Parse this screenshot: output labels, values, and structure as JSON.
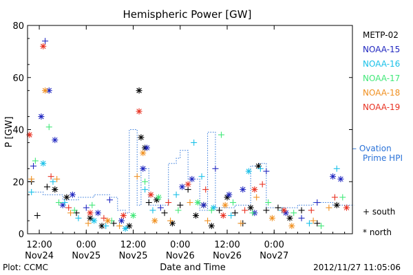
{
  "chart_data": {
    "type": "scatter",
    "title": "Hemispheric Power [GW]",
    "ylabel": "P [GW]",
    "xlabel": "Date and Time",
    "ylim": [
      0,
      80
    ],
    "yticks": [
      0,
      20,
      40,
      60,
      80
    ],
    "xlim": [
      "2012-11-24T09:00",
      "2012-11-27T20:00"
    ],
    "xticks": [
      {
        "t": "2012-11-24T12:00",
        "top": "12:00",
        "bottom": "Nov24"
      },
      {
        "t": "2012-11-25T00:00",
        "top": "0:00",
        "bottom": "Nov25"
      },
      {
        "t": "2012-11-25T12:00",
        "top": "12:00",
        "bottom": "Nov25"
      },
      {
        "t": "2012-11-26T00:00",
        "top": "0:00",
        "bottom": "Nov26"
      },
      {
        "t": "2012-11-26T12:00",
        "top": "12:00",
        "bottom": "Nov26"
      },
      {
        "t": "2012-11-27T00:00",
        "top": "0:00",
        "bottom": "Nov27"
      }
    ],
    "series": [
      {
        "name": "METP-02",
        "color": "#000000",
        "points": [
          [
            "2012-11-24T10:00",
            20,
            "s"
          ],
          [
            "2012-11-24T11:30",
            7,
            "s"
          ],
          [
            "2012-11-24T14:00",
            18,
            "s"
          ],
          [
            "2012-11-24T16:00",
            17,
            "n"
          ],
          [
            "2012-11-24T19:00",
            14,
            "n"
          ],
          [
            "2012-11-24T21:30",
            8,
            "s"
          ],
          [
            "2012-11-25T01:00",
            6,
            "n"
          ],
          [
            "2012-11-25T04:00",
            3,
            "n"
          ],
          [
            "2012-11-25T07:00",
            4,
            "s"
          ],
          [
            "2012-11-25T11:00",
            3,
            "n"
          ],
          [
            "2012-11-25T13:30",
            55,
            "n"
          ],
          [
            "2012-11-25T14:00",
            37,
            "n"
          ],
          [
            "2012-11-25T15:00",
            33,
            "n"
          ],
          [
            "2012-11-25T16:00",
            12,
            "s"
          ],
          [
            "2012-11-25T18:00",
            13,
            "n"
          ],
          [
            "2012-11-25T20:00",
            8,
            "s"
          ],
          [
            "2012-11-25T22:00",
            4,
            "n"
          ],
          [
            "2012-11-26T00:00",
            11,
            "s"
          ],
          [
            "2012-11-26T02:00",
            17,
            "s"
          ],
          [
            "2012-11-26T04:00",
            7,
            "n"
          ],
          [
            "2012-11-26T06:00",
            11,
            "n"
          ],
          [
            "2012-11-26T08:00",
            3,
            "n"
          ],
          [
            "2012-11-26T10:00",
            9,
            "s"
          ],
          [
            "2012-11-26T12:00",
            14,
            "n"
          ],
          [
            "2012-11-26T14:00",
            8,
            "s"
          ],
          [
            "2012-11-26T16:00",
            4,
            "s"
          ],
          [
            "2012-11-26T18:00",
            10,
            "n"
          ],
          [
            "2012-11-26T20:00",
            26,
            "n"
          ],
          [
            "2012-11-26T22:00",
            9,
            "s"
          ],
          [
            "2012-11-27T01:00",
            10,
            "s"
          ],
          [
            "2012-11-27T04:00",
            6,
            "n"
          ],
          [
            "2012-11-27T07:00",
            9,
            "s"
          ],
          [
            "2012-11-27T11:00",
            4,
            "s"
          ],
          [
            "2012-11-27T16:00",
            11,
            "n"
          ]
        ]
      },
      {
        "name": "NOAA-15",
        "color": "#2027c0",
        "points": [
          [
            "2012-11-24T10:30",
            26,
            "s"
          ],
          [
            "2012-11-24T12:30",
            45,
            "n"
          ],
          [
            "2012-11-24T13:30",
            74,
            "s"
          ],
          [
            "2012-11-24T14:30",
            55,
            "n"
          ],
          [
            "2012-11-24T16:00",
            36,
            "n"
          ],
          [
            "2012-11-24T18:00",
            11,
            "n"
          ],
          [
            "2012-11-24T20:30",
            15,
            "n"
          ],
          [
            "2012-11-25T00:00",
            10,
            "s"
          ],
          [
            "2012-11-25T03:00",
            8,
            "n"
          ],
          [
            "2012-11-25T06:00",
            13,
            "s"
          ],
          [
            "2012-11-25T09:00",
            5,
            "n"
          ],
          [
            "2012-11-25T14:30",
            25,
            "n"
          ],
          [
            "2012-11-25T15:30",
            33,
            "n"
          ],
          [
            "2012-11-25T19:00",
            10,
            "s"
          ],
          [
            "2012-11-26T00:30",
            18,
            "n"
          ],
          [
            "2012-11-26T03:00",
            21,
            "n"
          ],
          [
            "2012-11-26T06:00",
            11,
            "n"
          ],
          [
            "2012-11-26T09:00",
            25,
            "s"
          ],
          [
            "2012-11-26T12:30",
            15,
            "n"
          ],
          [
            "2012-11-26T16:00",
            17,
            "n"
          ],
          [
            "2012-11-26T19:00",
            8,
            "n"
          ],
          [
            "2012-11-26T22:00",
            24,
            "s"
          ],
          [
            "2012-11-27T03:00",
            8,
            "n"
          ],
          [
            "2012-11-27T07:00",
            6,
            "s"
          ],
          [
            "2012-11-27T11:00",
            12,
            "s"
          ],
          [
            "2012-11-27T15:00",
            22,
            "n"
          ],
          [
            "2012-11-27T17:00",
            21,
            "n"
          ]
        ]
      },
      {
        "name": "NOAA-16",
        "color": "#18c0e8",
        "points": [
          [
            "2012-11-24T10:00",
            16,
            "s"
          ],
          [
            "2012-11-24T13:00",
            27,
            "n"
          ],
          [
            "2012-11-24T15:30",
            20,
            "s"
          ],
          [
            "2012-11-24T18:30",
            12,
            "s"
          ],
          [
            "2012-11-24T22:00",
            6,
            "s"
          ],
          [
            "2012-11-25T02:00",
            5,
            "n"
          ],
          [
            "2012-11-25T05:00",
            3,
            "s"
          ],
          [
            "2012-11-25T10:00",
            2,
            "n"
          ],
          [
            "2012-11-25T15:00",
            17,
            "s"
          ],
          [
            "2012-11-25T17:00",
            9,
            "s"
          ],
          [
            "2012-11-25T23:00",
            15,
            "s"
          ],
          [
            "2012-11-26T03:30",
            35,
            "s"
          ],
          [
            "2012-11-26T05:30",
            22,
            "s"
          ],
          [
            "2012-11-26T08:30",
            10,
            "n"
          ],
          [
            "2012-11-26T13:00",
            7,
            "s"
          ],
          [
            "2012-11-26T17:30",
            24,
            "n"
          ],
          [
            "2012-11-26T20:30",
            25,
            "s"
          ],
          [
            "2012-11-27T02:00",
            9,
            "s"
          ],
          [
            "2012-11-27T09:00",
            4,
            "s"
          ],
          [
            "2012-11-27T16:00",
            25,
            "s"
          ]
        ]
      },
      {
        "name": "NOAA-17",
        "color": "#40e878",
        "points": [
          [
            "2012-11-24T11:00",
            28,
            "s"
          ],
          [
            "2012-11-24T14:30",
            41,
            "s"
          ],
          [
            "2012-11-24T17:00",
            12,
            "s"
          ],
          [
            "2012-11-24T21:00",
            9,
            "s"
          ],
          [
            "2012-11-25T01:30",
            11,
            "s"
          ],
          [
            "2012-11-25T06:30",
            5,
            "s"
          ],
          [
            "2012-11-25T12:00",
            7,
            "n"
          ],
          [
            "2012-11-25T15:00",
            20,
            "s"
          ],
          [
            "2012-11-25T18:30",
            14,
            "n"
          ],
          [
            "2012-11-25T23:30",
            9,
            "s"
          ],
          [
            "2012-11-26T04:30",
            12,
            "n"
          ],
          [
            "2012-11-26T08:00",
            9,
            "s"
          ],
          [
            "2012-11-26T10:30",
            38,
            "s"
          ],
          [
            "2012-11-26T13:30",
            12,
            "s"
          ],
          [
            "2012-11-26T18:30",
            8,
            "s"
          ],
          [
            "2012-11-26T22:30",
            12,
            "s"
          ],
          [
            "2012-11-27T05:00",
            8,
            "s"
          ],
          [
            "2012-11-27T12:00",
            3,
            "s"
          ],
          [
            "2012-11-27T17:30",
            14,
            "s"
          ]
        ]
      },
      {
        "name": "NOAA-18",
        "color": "#f09020",
        "points": [
          [
            "2012-11-24T10:00",
            21,
            "s"
          ],
          [
            "2012-11-24T13:30",
            55,
            "n"
          ],
          [
            "2012-11-24T16:30",
            21,
            "s"
          ],
          [
            "2012-11-24T20:00",
            8,
            "s"
          ],
          [
            "2012-11-25T00:30",
            4,
            "s"
          ],
          [
            "2012-11-25T05:30",
            5,
            "n"
          ],
          [
            "2012-11-25T08:30",
            3,
            "s"
          ],
          [
            "2012-11-25T13:00",
            22,
            "s"
          ],
          [
            "2012-11-25T14:30",
            31,
            "n"
          ],
          [
            "2012-11-25T17:30",
            5,
            "n"
          ],
          [
            "2012-11-25T21:30",
            5,
            "s"
          ],
          [
            "2012-11-26T02:30",
            12,
            "s"
          ],
          [
            "2012-11-26T07:00",
            5,
            "s"
          ],
          [
            "2012-11-26T11:30",
            11,
            "n"
          ],
          [
            "2012-11-26T15:30",
            4,
            "s"
          ],
          [
            "2012-11-26T19:30",
            14,
            "s"
          ],
          [
            "2012-11-26T23:30",
            6,
            "n"
          ],
          [
            "2012-11-27T04:30",
            3,
            "n"
          ],
          [
            "2012-11-27T10:00",
            5,
            "s"
          ],
          [
            "2012-11-27T14:00",
            10,
            "s"
          ]
        ]
      },
      {
        "name": "NOAA-19",
        "color": "#e83020",
        "points": [
          [
            "2012-11-24T09:30",
            38,
            "n"
          ],
          [
            "2012-11-24T13:00",
            72,
            "n"
          ],
          [
            "2012-11-24T15:00",
            22,
            "s"
          ],
          [
            "2012-11-24T19:30",
            10,
            "s"
          ],
          [
            "2012-11-25T01:00",
            8,
            "n"
          ],
          [
            "2012-11-25T04:30",
            6,
            "s"
          ],
          [
            "2012-11-25T09:30",
            7,
            "n"
          ],
          [
            "2012-11-25T13:30",
            47,
            "n"
          ],
          [
            "2012-11-25T16:30",
            15,
            "n"
          ],
          [
            "2012-11-25T21:00",
            12,
            "s"
          ],
          [
            "2012-11-26T02:00",
            19,
            "n"
          ],
          [
            "2012-11-26T06:30",
            17,
            "s"
          ],
          [
            "2012-11-26T11:00",
            7,
            "n"
          ],
          [
            "2012-11-26T16:30",
            9,
            "s"
          ],
          [
            "2012-11-26T19:00",
            17,
            "n"
          ],
          [
            "2012-11-26T21:00",
            19,
            "s"
          ],
          [
            "2012-11-27T02:30",
            9,
            "n"
          ],
          [
            "2012-11-27T09:30",
            9,
            "s"
          ],
          [
            "2012-11-27T15:30",
            14,
            "s"
          ],
          [
            "2012-11-27T18:30",
            10,
            "n"
          ]
        ]
      }
    ],
    "ovation": {
      "name": "– Ovation Prime HPI",
      "color": "#2a72d8",
      "steps": [
        [
          "2012-11-24T11:00",
          16
        ],
        [
          "2012-11-24T13:00",
          15
        ],
        [
          "2012-11-24T18:00",
          13
        ],
        [
          "2012-11-24T22:00",
          14
        ],
        [
          "2012-11-25T02:00",
          15
        ],
        [
          "2012-11-25T06:00",
          14
        ],
        [
          "2012-11-25T08:00",
          9
        ],
        [
          "2012-11-25T10:00",
          8
        ],
        [
          "2012-11-25T11:00",
          40
        ],
        [
          "2012-11-25T13:00",
          11
        ],
        [
          "2012-11-25T14:00",
          25
        ],
        [
          "2012-11-25T16:00",
          11
        ],
        [
          "2012-11-25T21:00",
          27
        ],
        [
          "2012-11-25T23:00",
          29
        ],
        [
          "2012-11-26T00:00",
          32
        ],
        [
          "2012-11-26T02:00",
          21
        ],
        [
          "2012-11-26T05:00",
          9
        ],
        [
          "2012-11-26T07:00",
          39
        ],
        [
          "2012-11-26T09:00",
          10
        ],
        [
          "2012-11-26T11:00",
          10
        ],
        [
          "2012-11-26T14:00",
          11
        ],
        [
          "2012-11-26T18:00",
          26
        ],
        [
          "2012-11-26T20:00",
          27
        ],
        [
          "2012-11-26T22:00",
          10
        ],
        [
          "2012-11-27T06:00",
          11
        ],
        [
          "2012-11-27T10:00",
          12
        ],
        [
          "2012-11-27T15:00",
          11
        ],
        [
          "2012-11-27T19:00",
          11
        ]
      ]
    },
    "markers": [
      {
        "symbol": "+",
        "label": "south"
      },
      {
        "symbol": "*",
        "label": "north"
      }
    ]
  },
  "footer": {
    "left": "Plot: CCMC",
    "right": "2012/11/27 11:05:06"
  }
}
